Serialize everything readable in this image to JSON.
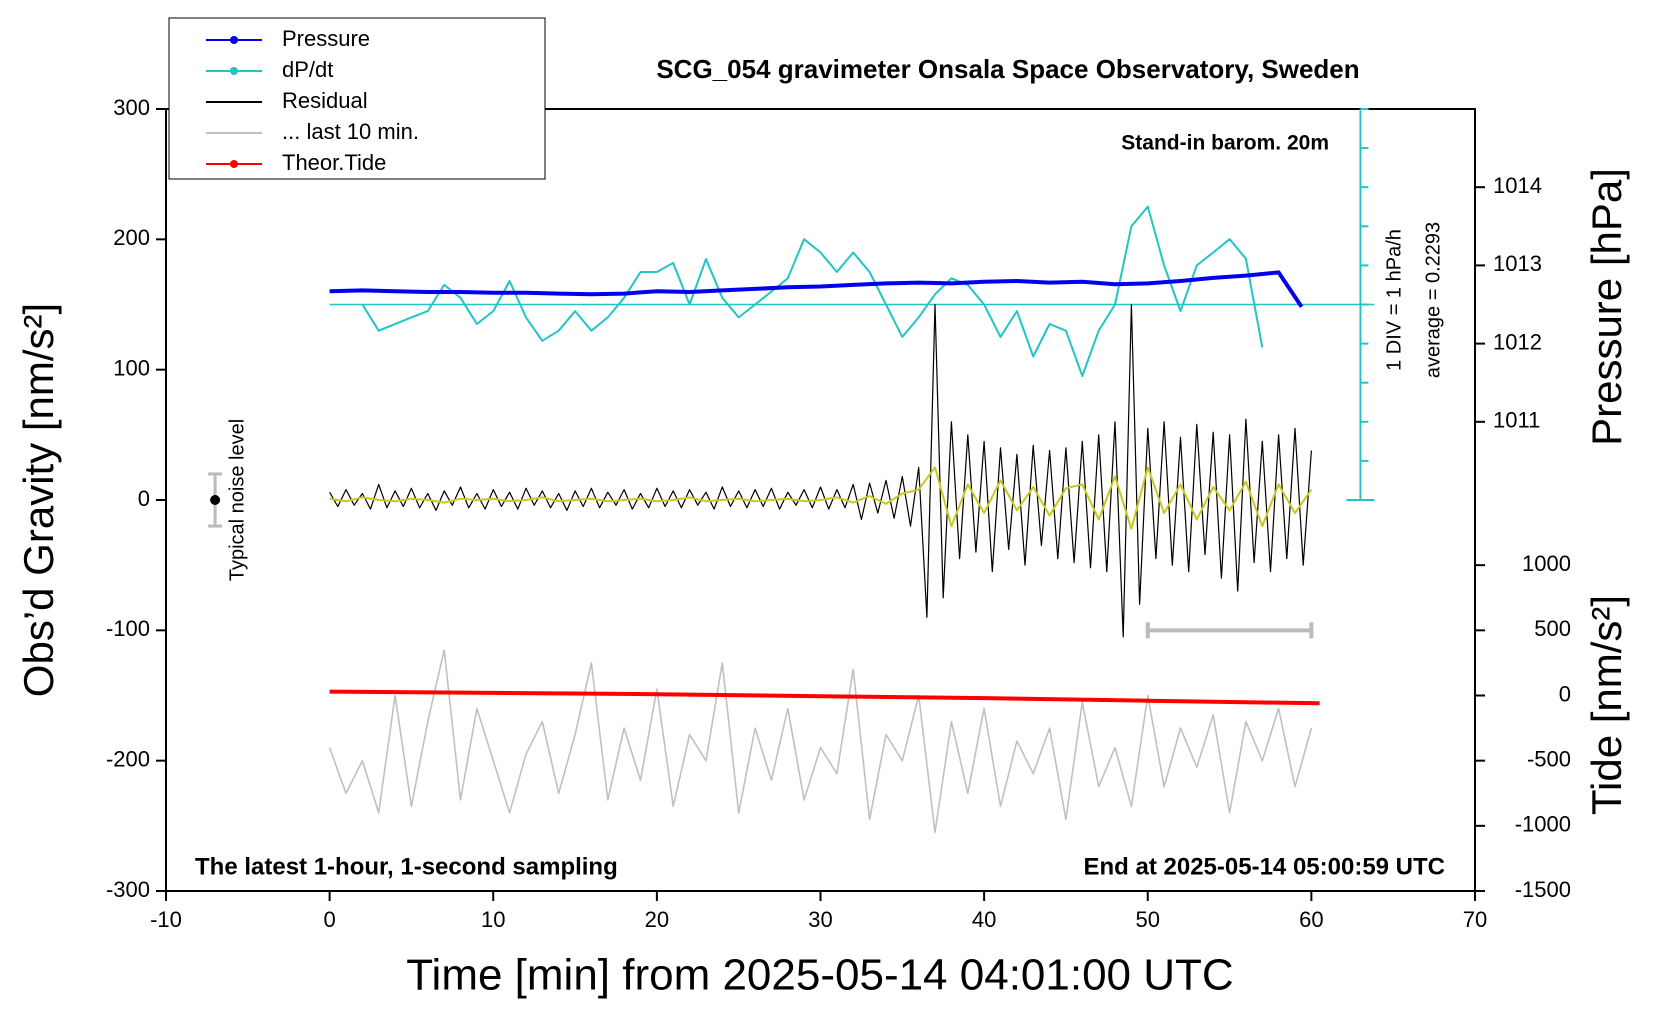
{
  "chart_data": {
    "type": "line",
    "title": "SCG_054 gravimeter Onsala Space Observatory, Sweden",
    "xlabel": "Time [min] from 2025-05-14 04:01:00 UTC",
    "ylabel": "Obs’d Gravity [nm/s²]",
    "y2label": "Pressure [hPa]",
    "y4label": "Tide [nm/s²]",
    "annotations": {
      "barometer": "Stand-in barom. 20m",
      "sampling": "The latest 1-hour, 1-second sampling",
      "end": "End at 2025-05-14 05:00:59 UTC",
      "div": "1 DIV = 1 hPa/h",
      "average": "average = 0.2293",
      "noise": "Typical noise level"
    },
    "xlim": [
      -10,
      70
    ],
    "xticks": [
      -10,
      0,
      10,
      20,
      30,
      40,
      50,
      60,
      70
    ],
    "ylim": [
      -300,
      300
    ],
    "yticks": [
      -300,
      -200,
      -100,
      0,
      100,
      200,
      300
    ],
    "y2lim": [
      1005,
      1015
    ],
    "y2ticks": [
      1011,
      1012,
      1013,
      1014
    ],
    "y3lim": [
      -14.7707,
      5.2293
    ],
    "y3ticks": [
      -4.7707,
      -3.7707,
      -2.7707,
      -1.7707,
      -0.7707,
      0.2293,
      1.2293,
      2.2293,
      3.2293,
      4.2293,
      5.2293
    ],
    "y4lim": [
      -1500,
      4500
    ],
    "y4ticks": [
      -1500,
      -1000,
      -500,
      0,
      500,
      1000
    ],
    "legend": "upper left",
    "noise_level": {
      "x": -7,
      "value": 0,
      "error": 20
    },
    "last10_span": {
      "x": [
        50,
        60
      ],
      "y": -100
    },
    "series": [
      {
        "name": "Pressure",
        "color": "#0000ee",
        "marker": true,
        "axis": "y2",
        "width": 4,
        "x": [
          0,
          2,
          4,
          6,
          8,
          10,
          12,
          14,
          16,
          18,
          20,
          22,
          24,
          26,
          28,
          30,
          32,
          34,
          36,
          38,
          40,
          42,
          44,
          46,
          48,
          50,
          52,
          54,
          56,
          58,
          59.4
        ],
        "values": [
          1012.67,
          1012.68,
          1012.67,
          1012.66,
          1012.66,
          1012.65,
          1012.65,
          1012.64,
          1012.63,
          1012.64,
          1012.67,
          1012.66,
          1012.68,
          1012.7,
          1012.72,
          1012.73,
          1012.75,
          1012.77,
          1012.78,
          1012.77,
          1012.79,
          1012.8,
          1012.78,
          1012.79,
          1012.76,
          1012.77,
          1012.8,
          1012.84,
          1012.87,
          1012.91,
          1012.47
        ]
      },
      {
        "name": "dP/dt",
        "color": "#22c4c4",
        "marker": true,
        "axis": "y3",
        "width": 2,
        "x": [
          2,
          3,
          5,
          6,
          7,
          8,
          9,
          10,
          11,
          12,
          13,
          14,
          15,
          16,
          17,
          18,
          19,
          20,
          21,
          22,
          23,
          24,
          25,
          26,
          27,
          28,
          29,
          30,
          31,
          32,
          33,
          34,
          35,
          36,
          37,
          38,
          39,
          40,
          41,
          42,
          43,
          44,
          45,
          46,
          47,
          48,
          49,
          50,
          51,
          52,
          53,
          54,
          55,
          56,
          57
        ],
        "values": [
          0.23,
          -0.44,
          -0.1,
          0.06,
          0.73,
          0.4,
          -0.27,
          0.06,
          0.83,
          -0.1,
          -0.7,
          -0.44,
          0.06,
          -0.44,
          -0.1,
          0.4,
          1.06,
          1.06,
          1.29,
          0.23,
          1.39,
          0.4,
          -0.1,
          0.23,
          0.56,
          0.9,
          1.9,
          1.56,
          1.06,
          1.56,
          1.06,
          0.23,
          -0.6,
          -0.1,
          0.49,
          0.9,
          0.73,
          0.23,
          -0.6,
          0.06,
          -1.1,
          -0.27,
          -0.44,
          -1.6,
          -0.44,
          0.23,
          2.23,
          2.73,
          1.23,
          0.06,
          1.23,
          1.56,
          1.9,
          1.4,
          -0.87
        ]
      },
      {
        "name": "Residual",
        "color": "#000000",
        "marker": false,
        "axis": "y",
        "width": 1.2,
        "x": [
          0,
          0.5,
          1,
          1.5,
          2,
          2.5,
          3,
          3.5,
          4,
          4.5,
          5,
          5.5,
          6,
          6.5,
          7,
          7.5,
          8,
          8.5,
          9,
          9.5,
          10,
          10.5,
          11,
          11.5,
          12,
          12.5,
          13,
          13.5,
          14,
          14.5,
          15,
          15.5,
          16,
          16.5,
          17,
          17.5,
          18,
          18.5,
          19,
          19.5,
          20,
          20.5,
          21,
          21.5,
          22,
          22.5,
          23,
          23.5,
          24,
          24.5,
          25,
          25.5,
          26,
          26.5,
          27,
          27.5,
          28,
          28.5,
          29,
          29.5,
          30,
          30.5,
          31,
          31.5,
          32,
          32.5,
          33,
          33.5,
          34,
          34.5,
          35,
          35.5,
          36,
          36.5,
          37,
          37.5,
          38,
          38.5,
          39,
          39.5,
          40,
          40.5,
          41,
          41.5,
          42,
          42.5,
          43,
          43.5,
          44,
          44.5,
          45,
          45.5,
          46,
          46.5,
          47,
          47.5,
          48,
          48.5,
          49,
          49.5,
          50,
          50.5,
          51,
          51.5,
          52,
          52.5,
          53,
          53.5,
          54,
          54.5,
          55,
          55.5,
          56,
          56.5,
          57,
          57.5,
          58,
          58.5,
          59,
          59.5,
          60
        ],
        "values": [
          6,
          -5,
          8,
          -4,
          5,
          -7,
          12,
          -6,
          7,
          -5,
          9,
          -6,
          5,
          -8,
          7,
          -4,
          10,
          -6,
          5,
          -7,
          8,
          -5,
          6,
          -7,
          9,
          -4,
          7,
          -6,
          5,
          -8,
          7,
          -5,
          9,
          -6,
          6,
          -4,
          8,
          -7,
          5,
          -6,
          9,
          -5,
          7,
          -6,
          8,
          -4,
          6,
          -7,
          10,
          -5,
          7,
          -6,
          8,
          -5,
          9,
          -7,
          6,
          -4,
          8,
          -6,
          10,
          -7,
          8,
          -6,
          12,
          -15,
          13,
          -10,
          15,
          -14,
          18,
          -20,
          25,
          -90,
          150,
          -75,
          60,
          -45,
          50,
          -40,
          45,
          -55,
          40,
          -38,
          35,
          -50,
          42,
          -35,
          38,
          -45,
          40,
          -48,
          45,
          -52,
          50,
          -55,
          60,
          -105,
          150,
          -80,
          55,
          -45,
          60,
          -50,
          48,
          -55,
          58,
          -42,
          52,
          -60,
          50,
          -70,
          62,
          -48,
          45,
          -55,
          50,
          -45,
          55,
          -50,
          38
        ]
      },
      {
        "color": "#c8c81e",
        "marker": false,
        "axis": "y",
        "width": 2,
        "x": [
          0,
          1,
          2,
          3,
          4,
          5,
          6,
          7,
          8,
          9,
          10,
          11,
          12,
          13,
          14,
          15,
          16,
          17,
          18,
          19,
          20,
          21,
          22,
          23,
          24,
          25,
          26,
          27,
          28,
          29,
          30,
          31,
          32,
          33,
          34,
          35,
          36,
          37,
          38,
          39,
          40,
          41,
          42,
          43,
          44,
          45,
          46,
          47,
          48,
          49,
          50,
          51,
          52,
          53,
          54,
          55,
          56,
          57,
          58,
          59,
          60
        ],
        "values": [
          1,
          -1,
          2,
          0,
          -1,
          1,
          0,
          -2,
          1,
          0,
          1,
          -1,
          0,
          2,
          -1,
          0,
          1,
          -1,
          0,
          1,
          -1,
          0,
          2,
          -1,
          0,
          1,
          -1,
          0,
          1,
          -1,
          0,
          2,
          -2,
          3,
          -3,
          5,
          8,
          25,
          -20,
          12,
          -10,
          15,
          -8,
          10,
          -12,
          9,
          12,
          -15,
          18,
          -22,
          25,
          -10,
          12,
          -15,
          10,
          -8,
          14,
          -20,
          12,
          -10,
          8
        ]
      },
      {
        "name": "... last 10 min.",
        "color": "#c0c0c0",
        "marker": false,
        "axis": "y",
        "width": 1.6,
        "x": [
          0,
          1,
          2,
          3,
          4,
          5,
          6,
          7,
          8,
          9,
          10,
          11,
          12,
          13,
          14,
          15,
          16,
          17,
          18,
          19,
          20,
          21,
          22,
          23,
          24,
          25,
          26,
          27,
          28,
          29,
          30,
          31,
          32,
          33,
          34,
          35,
          36,
          37,
          38,
          39,
          40,
          41,
          42,
          43,
          44,
          45,
          46,
          47,
          48,
          49,
          50,
          51,
          52,
          53,
          54,
          55,
          56,
          57,
          58,
          59,
          60
        ],
        "values": [
          -190,
          -225,
          -200,
          -240,
          -150,
          -235,
          -170,
          -115,
          -230,
          -160,
          -200,
          -240,
          -195,
          -170,
          -225,
          -180,
          -125,
          -230,
          -175,
          -215,
          -145,
          -235,
          -180,
          -200,
          -125,
          -240,
          -175,
          -215,
          -160,
          -230,
          -190,
          -210,
          -130,
          -245,
          -180,
          -200,
          -150,
          -255,
          -170,
          -225,
          -160,
          -235,
          -185,
          -210,
          -175,
          -245,
          -155,
          -220,
          -190,
          -235,
          -150,
          -220,
          -175,
          -205,
          -165,
          -240,
          -170,
          -200,
          -160,
          -220,
          -175
        ]
      },
      {
        "name": "Theor.Tide",
        "color": "#ff0000",
        "marker": true,
        "axis": "y4",
        "width": 4,
        "x": [
          0,
          10,
          20,
          30,
          40,
          50,
          60.5
        ],
        "values": [
          30,
          20,
          10,
          -5,
          -20,
          -40,
          -60
        ]
      }
    ]
  }
}
